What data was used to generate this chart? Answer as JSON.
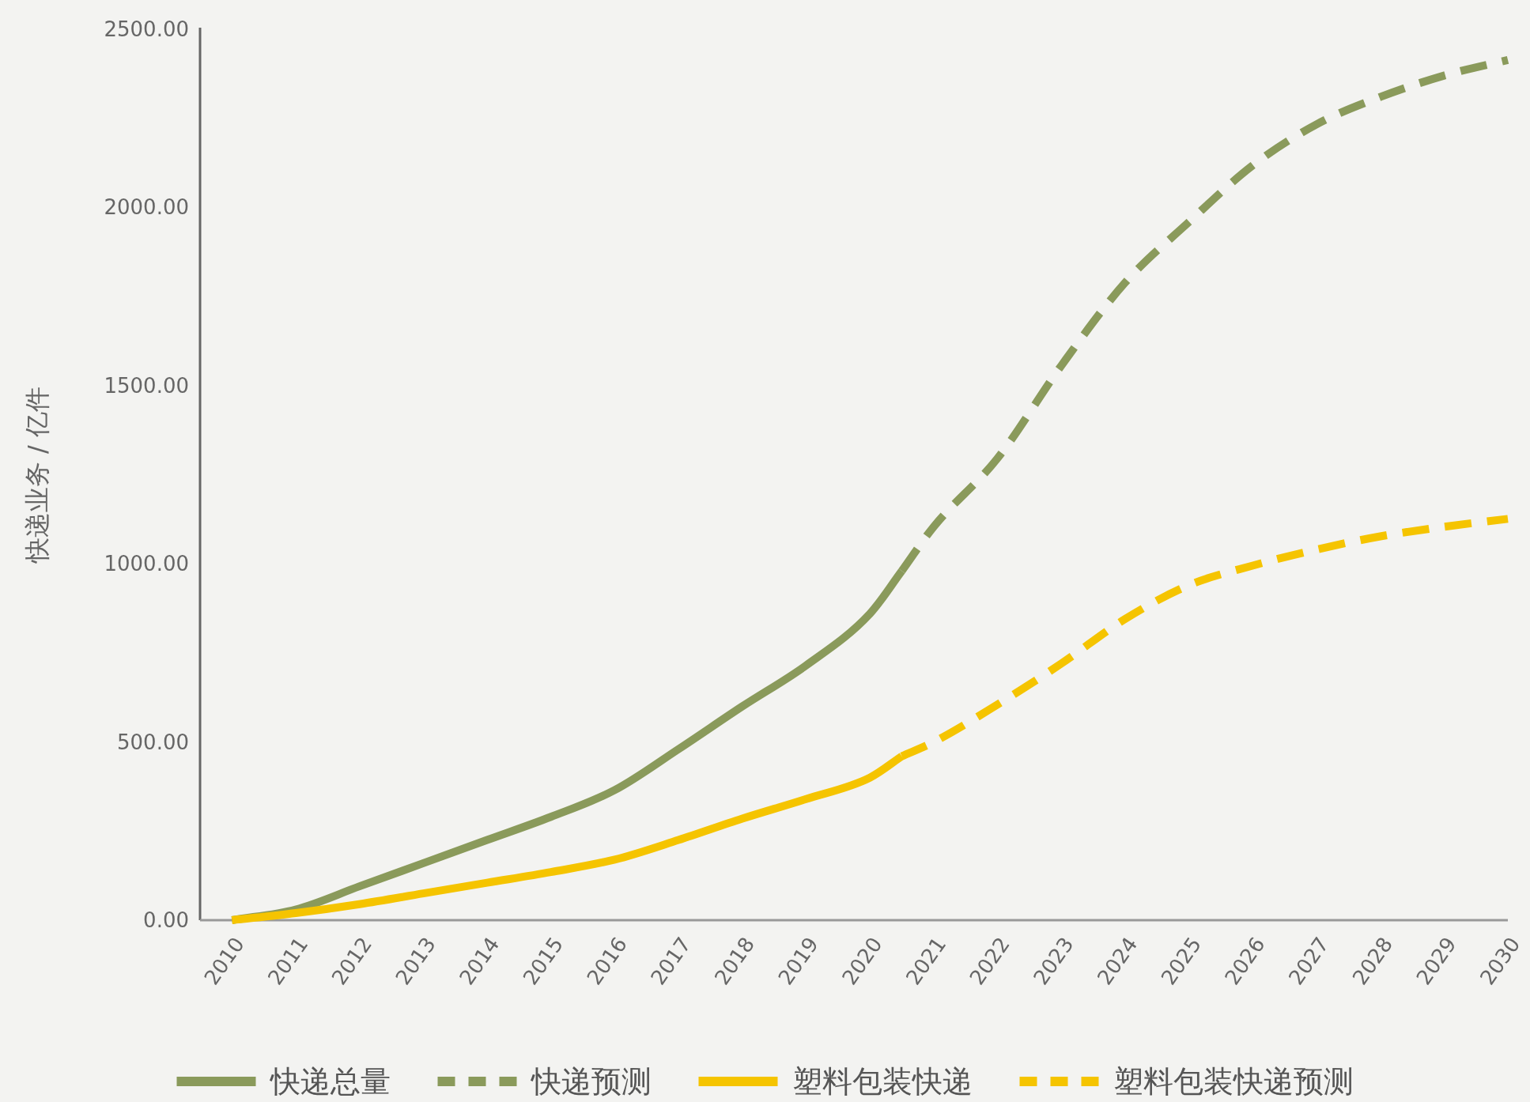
{
  "chart_data": {
    "type": "line",
    "ylabel": "快递业务 / 亿件",
    "xlim": [
      2009.5,
      2030
    ],
    "ylim": [
      0,
      2500
    ],
    "xticks": [
      2010,
      2011,
      2012,
      2013,
      2014,
      2015,
      2016,
      2017,
      2018,
      2019,
      2020,
      2021,
      2022,
      2023,
      2024,
      2025,
      2026,
      2027,
      2028,
      2029,
      2030
    ],
    "yticks": [
      {
        "value": 0,
        "label": "0.00"
      },
      {
        "value": 500,
        "label": "500.00"
      },
      {
        "value": 1000,
        "label": "1000.00"
      },
      {
        "value": 1500,
        "label": "1500.00"
      },
      {
        "value": 2000,
        "label": "2000.00"
      },
      {
        "value": 2500,
        "label": "2500.00"
      }
    ],
    "grid": false,
    "legend": "bottom",
    "marker": "none",
    "series": [
      {
        "name": "快递总量",
        "color": "#8a9a5b",
        "line_style": "solid",
        "x": [
          2010,
          2011,
          2012,
          2013,
          2014,
          2015,
          2016,
          2017,
          2018,
          2019,
          2020,
          2020.5
        ],
        "values": [
          0,
          30,
          95,
          160,
          225,
          290,
          365,
          480,
          600,
          715,
          860,
          980
        ]
      },
      {
        "name": "快递预测",
        "color": "#8a9a5b",
        "line_style": "dashed",
        "x": [
          2020.5,
          2021,
          2022,
          2023,
          2024,
          2025,
          2026,
          2027,
          2028,
          2029,
          2030
        ],
        "values": [
          980,
          1104,
          1296,
          1556,
          1789,
          1959,
          2118,
          2233,
          2310,
          2370,
          2414
        ]
      },
      {
        "name": "塑料包装快递",
        "color": "#f5c400",
        "line_style": "solid",
        "x": [
          2010,
          2011,
          2012,
          2013,
          2014,
          2015,
          2016,
          2017,
          2018,
          2019,
          2020,
          2020.5
        ],
        "values": [
          0,
          20,
          45,
          75,
          105,
          135,
          170,
          225,
          285,
          340,
          400,
          460
        ]
      },
      {
        "name": "塑料包装快递预测",
        "color": "#f5c400",
        "line_style": "dashed",
        "x": [
          2020.5,
          2021,
          2022,
          2023,
          2024,
          2025,
          2026,
          2027,
          2028,
          2029,
          2030
        ],
        "values": [
          460,
          500,
          605,
          720,
          845,
          940,
          995,
          1040,
          1077,
          1104,
          1126
        ]
      }
    ]
  }
}
